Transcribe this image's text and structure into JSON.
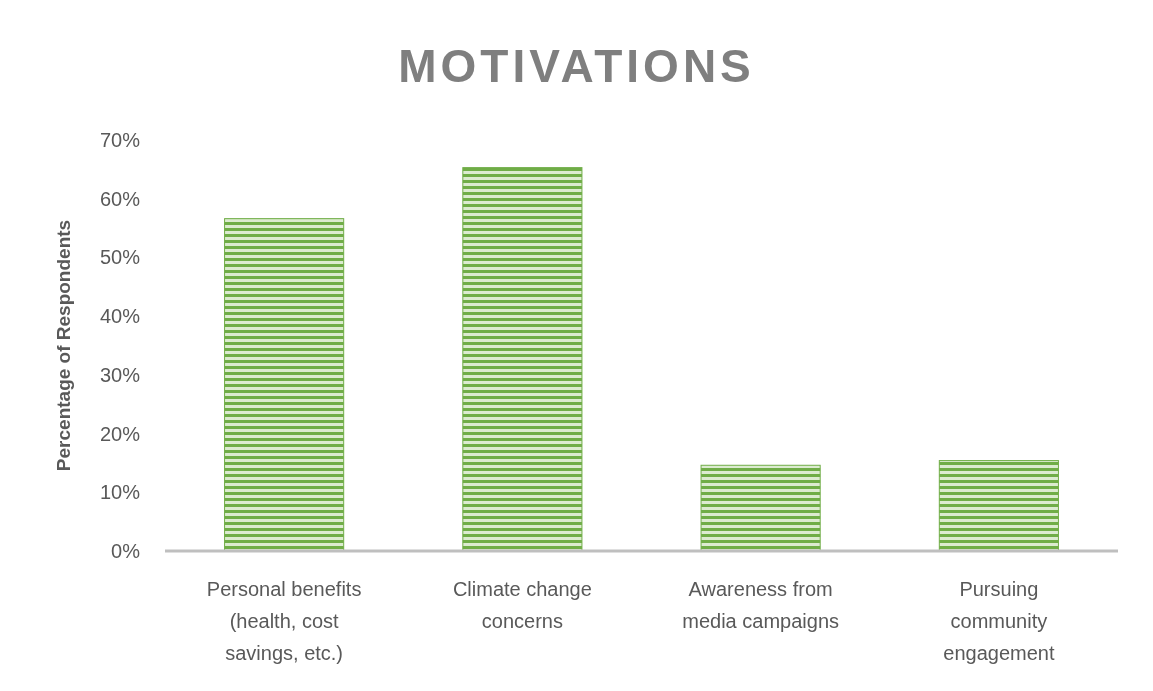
{
  "chart_data": {
    "type": "bar",
    "title": "MOTIVATIONS",
    "ylabel": "Percentage of Respondents",
    "categories": [
      "Personal benefits (health, cost savings, etc.)",
      "Climate change concerns",
      "Awareness from media campaigns",
      "Pursuing community engagement"
    ],
    "values": [
      56.6,
      65.3,
      14.6,
      15.4
    ],
    "color": "#70ad47",
    "ylim": [
      0,
      70
    ],
    "yticks": [
      {
        "value": 0,
        "label": "0%"
      },
      {
        "value": 10,
        "label": "10%"
      },
      {
        "value": 20,
        "label": "20%"
      },
      {
        "value": 30,
        "label": "30%"
      },
      {
        "value": 40,
        "label": "40%"
      },
      {
        "value": 50,
        "label": "50%"
      },
      {
        "value": 60,
        "label": "60%"
      },
      {
        "value": 70,
        "label": "70%"
      }
    ],
    "grid": false
  }
}
